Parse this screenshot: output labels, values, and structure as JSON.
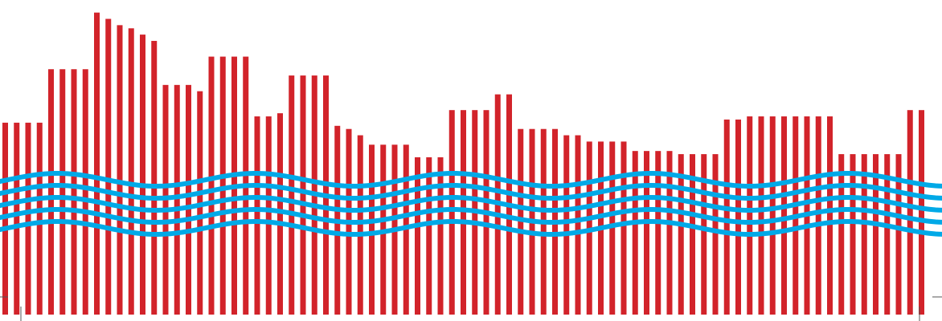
{
  "artwork": {
    "background_color": "#ffffff",
    "bar_color": "#d2232a",
    "wave_color": "#00a9e7",
    "corner_mark_color": "#555555",
    "bar_count": 81,
    "wave_line_count": 5,
    "bar_levels": [
      61,
      61,
      61,
      61,
      78,
      78,
      78,
      78,
      96,
      94,
      92,
      91,
      89,
      87,
      73,
      73,
      73,
      71,
      82,
      82,
      82,
      82,
      63,
      63,
      64,
      76,
      76,
      76,
      76,
      60,
      59,
      57,
      54,
      54,
      54,
      54,
      50,
      50,
      50,
      65,
      65,
      65,
      65,
      70,
      70,
      59,
      59,
      59,
      59,
      57,
      57,
      55,
      55,
      55,
      55,
      52,
      52,
      52,
      52,
      51,
      51,
      51,
      51,
      62,
      62,
      63,
      63,
      63,
      63,
      63,
      63,
      63,
      63,
      51,
      51,
      51,
      51,
      51,
      51,
      65,
      65
    ]
  }
}
